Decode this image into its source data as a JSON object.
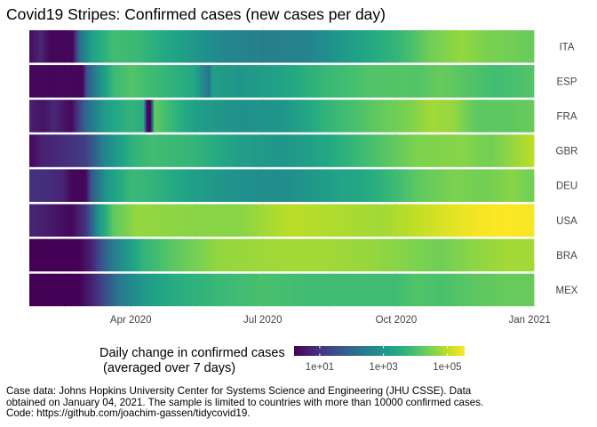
{
  "title": "Covid19 Stripes: Confirmed cases (new cases per day)",
  "legend": {
    "title_line1": "Daily change in confirmed cases",
    "title_line2": " (averaged over 7 days)",
    "ticks": [
      {
        "label": "1e+01",
        "log10": 1
      },
      {
        "label": "1e+03",
        "log10": 3
      },
      {
        "label": "1e+05",
        "log10": 5
      }
    ],
    "palette": "viridis"
  },
  "caption": "Case data: Johns Hopkins University Center for Systems Science and Engineering (JHU CSSE). Data obtained on January 04, 2021. The sample is limited to countries with more than 10000 confirmed cases. Code: https://github.com/joachim-gassen/tidycovid19.",
  "chart_data": {
    "type": "heatmap",
    "title": "Covid19 Stripes: Confirmed cases (new cases per day)",
    "xlabel": "",
    "ylabel": "",
    "x_range": [
      "2020-01-22",
      "2021-01-03"
    ],
    "x_ticks": [
      {
        "label": "Apr 2020",
        "date": "2020-04-01"
      },
      {
        "label": "Jul 2020",
        "date": "2020-07-01"
      },
      {
        "label": "Oct 2020",
        "date": "2020-10-01"
      },
      {
        "label": "Jan 2021",
        "date": "2021-01-01"
      }
    ],
    "x_minor_ticks": [
      "2020-02-15",
      "2020-05-16",
      "2020-08-16",
      "2020-11-16"
    ],
    "color_scale": {
      "type": "log10",
      "palette": "viridis",
      "log10_range": [
        0,
        5.35
      ]
    },
    "value_unit": "log10 of new confirmed cases per day (7-day average)",
    "grid": true,
    "legend_position": "bottom",
    "rows": [
      {
        "country": "ITA",
        "points": [
          [
            "2020-01-22",
            0.2
          ],
          [
            "2020-01-30",
            0.6
          ],
          [
            "2020-02-05",
            0.1
          ],
          [
            "2020-02-21",
            0.1
          ],
          [
            "2020-02-26",
            2.0
          ],
          [
            "2020-03-05",
            3.0
          ],
          [
            "2020-03-20",
            3.7
          ],
          [
            "2020-04-05",
            3.6
          ],
          [
            "2020-05-01",
            3.1
          ],
          [
            "2020-06-01",
            2.5
          ],
          [
            "2020-07-01",
            2.3
          ],
          [
            "2020-08-01",
            2.4
          ],
          [
            "2020-09-01",
            3.0
          ],
          [
            "2020-10-01",
            3.5
          ],
          [
            "2020-10-25",
            4.2
          ],
          [
            "2020-11-15",
            4.5
          ],
          [
            "2020-12-01",
            4.3
          ],
          [
            "2020-12-20",
            4.2
          ],
          [
            "2021-01-03",
            4.1
          ]
        ]
      },
      {
        "country": "ESP",
        "points": [
          [
            "2020-01-22",
            0.1
          ],
          [
            "2020-02-28",
            0.1
          ],
          [
            "2020-03-02",
            1.5
          ],
          [
            "2020-03-10",
            2.6
          ],
          [
            "2020-03-20",
            3.6
          ],
          [
            "2020-04-01",
            3.9
          ],
          [
            "2020-04-20",
            3.6
          ],
          [
            "2020-05-15",
            3.2
          ],
          [
            "2020-05-25",
            2.0
          ],
          [
            "2020-05-27",
            3.0
          ],
          [
            "2020-06-15",
            2.8
          ],
          [
            "2020-07-15",
            3.1
          ],
          [
            "2020-08-15",
            3.6
          ],
          [
            "2020-09-15",
            3.9
          ],
          [
            "2020-10-15",
            3.9
          ],
          [
            "2020-11-01",
            4.1
          ],
          [
            "2020-11-20",
            3.9
          ],
          [
            "2020-12-10",
            3.7
          ],
          [
            "2021-01-03",
            3.9
          ]
        ]
      },
      {
        "country": "FRA",
        "points": [
          [
            "2020-01-22",
            0.6
          ],
          [
            "2020-01-25",
            0.4
          ],
          [
            "2020-02-01",
            0.3
          ],
          [
            "2020-02-08",
            0.6
          ],
          [
            "2020-02-20",
            0.1
          ],
          [
            "2020-03-01",
            1.8
          ],
          [
            "2020-03-15",
            3.0
          ],
          [
            "2020-04-01",
            3.5
          ],
          [
            "2020-04-10",
            3.3
          ],
          [
            "2020-04-12",
            0.1
          ],
          [
            "2020-04-15",
            0.1
          ],
          [
            "2020-04-17",
            4.1
          ],
          [
            "2020-04-28",
            3.6
          ],
          [
            "2020-05-15",
            3.0
          ],
          [
            "2020-06-15",
            2.7
          ],
          [
            "2020-07-15",
            2.8
          ],
          [
            "2020-08-15",
            3.5
          ],
          [
            "2020-09-15",
            4.0
          ],
          [
            "2020-10-10",
            4.3
          ],
          [
            "2020-10-25",
            4.6
          ],
          [
            "2020-11-10",
            4.5
          ],
          [
            "2020-11-25",
            4.0
          ],
          [
            "2020-12-15",
            4.0
          ],
          [
            "2021-01-03",
            4.1
          ]
        ]
      },
      {
        "country": "GBR",
        "points": [
          [
            "2020-01-22",
            0.1
          ],
          [
            "2020-01-30",
            0.5
          ],
          [
            "2020-02-15",
            0.7
          ],
          [
            "2020-03-01",
            1.0
          ],
          [
            "2020-03-15",
            2.5
          ],
          [
            "2020-04-01",
            3.4
          ],
          [
            "2020-04-15",
            3.7
          ],
          [
            "2020-05-15",
            3.5
          ],
          [
            "2020-06-15",
            3.0
          ],
          [
            "2020-07-15",
            2.8
          ],
          [
            "2020-08-15",
            3.2
          ],
          [
            "2020-09-15",
            3.8
          ],
          [
            "2020-10-15",
            4.3
          ],
          [
            "2020-11-15",
            4.4
          ],
          [
            "2020-12-05",
            4.2
          ],
          [
            "2020-12-20",
            4.5
          ],
          [
            "2021-01-03",
            4.8
          ]
        ]
      },
      {
        "country": "DEU",
        "points": [
          [
            "2020-01-22",
            0.8
          ],
          [
            "2020-02-05",
            0.7
          ],
          [
            "2020-02-15",
            0.5
          ],
          [
            "2020-02-20",
            0.1
          ],
          [
            "2020-03-01",
            0.1
          ],
          [
            "2020-03-05",
            1.5
          ],
          [
            "2020-03-15",
            2.8
          ],
          [
            "2020-04-01",
            3.6
          ],
          [
            "2020-04-15",
            3.5
          ],
          [
            "2020-05-15",
            3.0
          ],
          [
            "2020-06-15",
            2.7
          ],
          [
            "2020-07-15",
            2.6
          ],
          [
            "2020-08-15",
            3.0
          ],
          [
            "2020-09-15",
            3.3
          ],
          [
            "2020-10-15",
            4.0
          ],
          [
            "2020-11-10",
            4.3
          ],
          [
            "2020-12-01",
            4.2
          ],
          [
            "2020-12-20",
            4.4
          ],
          [
            "2021-01-03",
            4.2
          ]
        ]
      },
      {
        "country": "USA",
        "points": [
          [
            "2020-01-22",
            0.6
          ],
          [
            "2020-02-10",
            0.3
          ],
          [
            "2020-02-20",
            0.1
          ],
          [
            "2020-03-01",
            0.8
          ],
          [
            "2020-03-10",
            2.8
          ],
          [
            "2020-03-20",
            4.0
          ],
          [
            "2020-04-05",
            4.5
          ],
          [
            "2020-05-15",
            4.4
          ],
          [
            "2020-06-15",
            4.4
          ],
          [
            "2020-07-20",
            4.8
          ],
          [
            "2020-08-20",
            4.7
          ],
          [
            "2020-09-20",
            4.6
          ],
          [
            "2020-10-20",
            4.9
          ],
          [
            "2020-11-15",
            5.2
          ],
          [
            "2020-12-10",
            5.35
          ],
          [
            "2021-01-03",
            5.3
          ]
        ]
      },
      {
        "country": "BRA",
        "points": [
          [
            "2020-01-22",
            0.0
          ],
          [
            "2020-02-25",
            0.0
          ],
          [
            "2020-03-05",
            0.5
          ],
          [
            "2020-03-15",
            1.8
          ],
          [
            "2020-03-25",
            2.6
          ],
          [
            "2020-04-10",
            3.5
          ],
          [
            "2020-05-01",
            4.0
          ],
          [
            "2020-06-01",
            4.5
          ],
          [
            "2020-07-15",
            4.6
          ],
          [
            "2020-08-15",
            4.6
          ],
          [
            "2020-09-15",
            4.5
          ],
          [
            "2020-10-15",
            4.3
          ],
          [
            "2020-11-01",
            4.2
          ],
          [
            "2020-11-20",
            4.4
          ],
          [
            "2020-12-15",
            4.6
          ],
          [
            "2021-01-03",
            4.6
          ]
        ]
      },
      {
        "country": "MEX",
        "points": [
          [
            "2020-01-22",
            0.0
          ],
          [
            "2020-02-25",
            0.0
          ],
          [
            "2020-03-05",
            0.5
          ],
          [
            "2020-03-15",
            1.3
          ],
          [
            "2020-03-25",
            2.2
          ],
          [
            "2020-04-10",
            2.9
          ],
          [
            "2020-05-01",
            3.3
          ],
          [
            "2020-06-01",
            3.6
          ],
          [
            "2020-07-01",
            3.8
          ],
          [
            "2020-08-01",
            3.7
          ],
          [
            "2020-09-01",
            3.7
          ],
          [
            "2020-10-01",
            3.7
          ],
          [
            "2020-10-15",
            3.9
          ],
          [
            "2020-11-01",
            3.8
          ],
          [
            "2020-11-25",
            4.0
          ],
          [
            "2020-12-15",
            4.1
          ],
          [
            "2021-01-03",
            4.1
          ]
        ]
      }
    ]
  }
}
